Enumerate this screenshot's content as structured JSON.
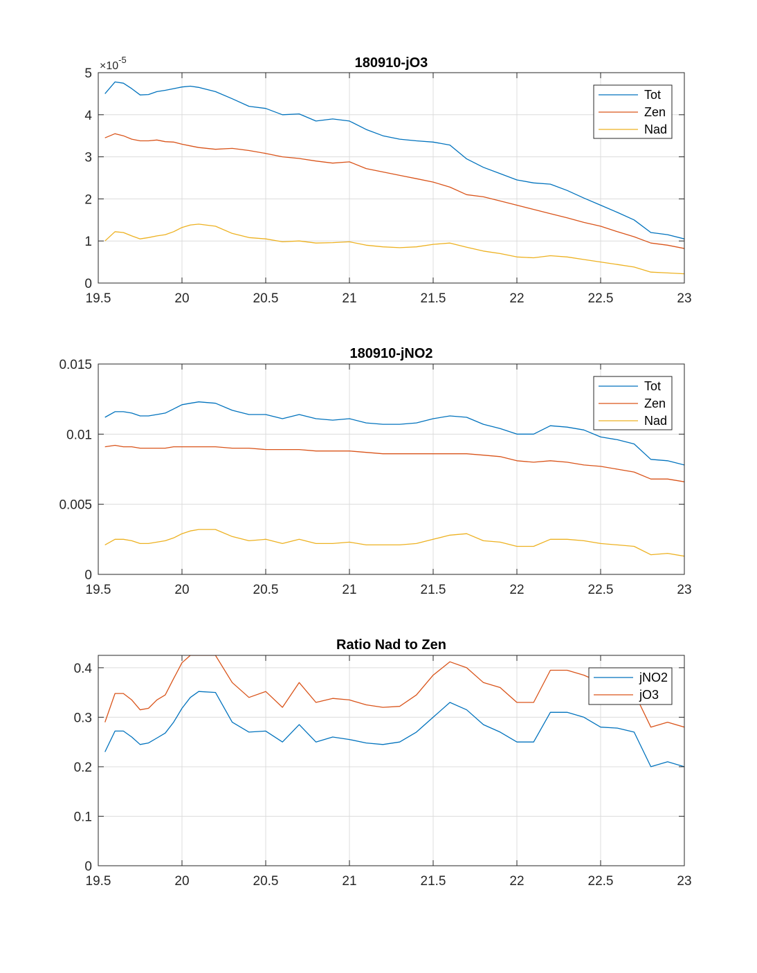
{
  "colors": {
    "blue": "#0072BD",
    "orange": "#D95319",
    "yellow": "#EDB120"
  },
  "chart_data": [
    {
      "type": "line",
      "title": "180910-jO3",
      "xlabel": "",
      "ylabel": "",
      "xlim": [
        19.5,
        23
      ],
      "ylim": [
        0,
        5
      ],
      "xticks": [
        19.5,
        20,
        20.5,
        21,
        21.5,
        22,
        22.5,
        23
      ],
      "xtick_labels": [
        "19.5",
        "20",
        "20.5",
        "21",
        "21.5",
        "22",
        "22.5",
        "23"
      ],
      "yticks": [
        0,
        1,
        2,
        3,
        4,
        5
      ],
      "ytick_labels": [
        "0",
        "1",
        "2",
        "3",
        "4",
        "5"
      ],
      "y_exponent_base": "×10",
      "y_exponent_power": "-5",
      "legend_position": "top-right",
      "grid": true,
      "x": [
        19.54,
        19.6,
        19.65,
        19.7,
        19.75,
        19.8,
        19.85,
        19.9,
        19.95,
        20.0,
        20.05,
        20.1,
        20.2,
        20.3,
        20.4,
        20.5,
        20.6,
        20.7,
        20.8,
        20.9,
        21.0,
        21.1,
        21.2,
        21.3,
        21.4,
        21.5,
        21.6,
        21.7,
        21.8,
        21.9,
        22.0,
        22.1,
        22.2,
        22.3,
        22.4,
        22.5,
        22.6,
        22.7,
        22.8,
        22.9,
        23.0
      ],
      "series": [
        {
          "name": "Tot",
          "color": "#0072BD",
          "values": [
            4.5,
            4.78,
            4.75,
            4.62,
            4.47,
            4.48,
            4.55,
            4.58,
            4.62,
            4.66,
            4.68,
            4.65,
            4.55,
            4.38,
            4.2,
            4.15,
            4.0,
            4.02,
            3.85,
            3.9,
            3.85,
            3.65,
            3.5,
            3.42,
            3.38,
            3.35,
            3.28,
            2.95,
            2.75,
            2.6,
            2.45,
            2.38,
            2.35,
            2.2,
            2.02,
            1.85,
            1.68,
            1.5,
            1.2,
            1.15,
            1.05
          ]
        },
        {
          "name": "Zen",
          "color": "#D95319",
          "values": [
            3.45,
            3.55,
            3.5,
            3.42,
            3.38,
            3.38,
            3.4,
            3.36,
            3.35,
            3.3,
            3.26,
            3.22,
            3.18,
            3.2,
            3.15,
            3.08,
            3.0,
            2.96,
            2.9,
            2.85,
            2.88,
            2.72,
            2.64,
            2.56,
            2.48,
            2.4,
            2.28,
            2.1,
            2.05,
            1.95,
            1.85,
            1.75,
            1.65,
            1.55,
            1.44,
            1.35,
            1.22,
            1.1,
            0.95,
            0.9,
            0.82
          ]
        },
        {
          "name": "Nad",
          "color": "#EDB120",
          "values": [
            1.0,
            1.22,
            1.2,
            1.12,
            1.05,
            1.08,
            1.12,
            1.15,
            1.22,
            1.32,
            1.38,
            1.4,
            1.35,
            1.18,
            1.08,
            1.05,
            0.98,
            1.0,
            0.95,
            0.96,
            0.98,
            0.9,
            0.86,
            0.84,
            0.86,
            0.92,
            0.95,
            0.85,
            0.76,
            0.7,
            0.62,
            0.6,
            0.65,
            0.62,
            0.56,
            0.5,
            0.44,
            0.38,
            0.26,
            0.24,
            0.22
          ]
        }
      ]
    },
    {
      "type": "line",
      "title": "180910-jNO2",
      "xlabel": "",
      "ylabel": "",
      "xlim": [
        19.5,
        23
      ],
      "ylim": [
        0,
        0.015
      ],
      "xticks": [
        19.5,
        20,
        20.5,
        21,
        21.5,
        22,
        22.5,
        23
      ],
      "xtick_labels": [
        "19.5",
        "20",
        "20.5",
        "21",
        "21.5",
        "22",
        "22.5",
        "23"
      ],
      "yticks": [
        0,
        0.005,
        0.01,
        0.015
      ],
      "ytick_labels": [
        "0",
        "0.005",
        "0.01",
        "0.015"
      ],
      "legend_position": "top-right",
      "grid": true,
      "x": [
        19.54,
        19.6,
        19.65,
        19.7,
        19.75,
        19.8,
        19.85,
        19.9,
        19.95,
        20.0,
        20.05,
        20.1,
        20.2,
        20.3,
        20.4,
        20.5,
        20.6,
        20.7,
        20.8,
        20.9,
        21.0,
        21.1,
        21.2,
        21.3,
        21.4,
        21.5,
        21.6,
        21.7,
        21.8,
        21.9,
        22.0,
        22.1,
        22.2,
        22.3,
        22.4,
        22.5,
        22.6,
        22.7,
        22.8,
        22.9,
        23.0
      ],
      "series": [
        {
          "name": "Tot",
          "color": "#0072BD",
          "values": [
            0.0112,
            0.0116,
            0.0116,
            0.0115,
            0.0113,
            0.0113,
            0.0114,
            0.0115,
            0.0118,
            0.0121,
            0.0122,
            0.0123,
            0.0122,
            0.0117,
            0.0114,
            0.0114,
            0.0111,
            0.0114,
            0.0111,
            0.011,
            0.0111,
            0.0108,
            0.0107,
            0.0107,
            0.0108,
            0.0111,
            0.0113,
            0.0112,
            0.0107,
            0.0104,
            0.01,
            0.01,
            0.0106,
            0.0105,
            0.0103,
            0.0098,
            0.0096,
            0.0093,
            0.0082,
            0.0081,
            0.0078
          ]
        },
        {
          "name": "Zen",
          "color": "#D95319",
          "values": [
            0.0091,
            0.0092,
            0.0091,
            0.0091,
            0.009,
            0.009,
            0.009,
            0.009,
            0.0091,
            0.0091,
            0.0091,
            0.0091,
            0.0091,
            0.009,
            0.009,
            0.0089,
            0.0089,
            0.0089,
            0.0088,
            0.0088,
            0.0088,
            0.0087,
            0.0086,
            0.0086,
            0.0086,
            0.0086,
            0.0086,
            0.0086,
            0.0085,
            0.0084,
            0.0081,
            0.008,
            0.0081,
            0.008,
            0.0078,
            0.0077,
            0.0075,
            0.0073,
            0.0068,
            0.0068,
            0.0066
          ]
        },
        {
          "name": "Nad",
          "color": "#EDB120",
          "values": [
            0.0021,
            0.0025,
            0.0025,
            0.0024,
            0.0022,
            0.0022,
            0.0023,
            0.0024,
            0.0026,
            0.0029,
            0.0031,
            0.0032,
            0.0032,
            0.0027,
            0.0024,
            0.0025,
            0.0022,
            0.0025,
            0.0022,
            0.0022,
            0.0023,
            0.0021,
            0.0021,
            0.0021,
            0.0022,
            0.0025,
            0.0028,
            0.0029,
            0.0024,
            0.0023,
            0.002,
            0.002,
            0.0025,
            0.0025,
            0.0024,
            0.0022,
            0.0021,
            0.002,
            0.0014,
            0.0015,
            0.0013
          ]
        }
      ]
    },
    {
      "type": "line",
      "title": "Ratio Nad to Zen",
      "xlabel": "",
      "ylabel": "",
      "xlim": [
        19.5,
        23
      ],
      "ylim": [
        0,
        0.425
      ],
      "xticks": [
        19.5,
        20,
        20.5,
        21,
        21.5,
        22,
        22.5,
        23
      ],
      "xtick_labels": [
        "19.5",
        "20",
        "20.5",
        "21",
        "21.5",
        "22",
        "22.5",
        "23"
      ],
      "yticks": [
        0,
        0.1,
        0.2,
        0.3,
        0.4
      ],
      "ytick_labels": [
        "0",
        "0.1",
        "0.2",
        "0.3",
        "0.4"
      ],
      "legend_position": "top-right",
      "grid": true,
      "x": [
        19.54,
        19.6,
        19.65,
        19.7,
        19.75,
        19.8,
        19.85,
        19.9,
        19.95,
        20.0,
        20.05,
        20.1,
        20.2,
        20.3,
        20.4,
        20.5,
        20.6,
        20.7,
        20.8,
        20.9,
        21.0,
        21.1,
        21.2,
        21.3,
        21.4,
        21.5,
        21.6,
        21.7,
        21.8,
        21.9,
        22.0,
        22.1,
        22.2,
        22.3,
        22.4,
        22.5,
        22.6,
        22.7,
        22.8,
        22.9,
        23.0
      ],
      "series": [
        {
          "name": "jNO2",
          "color": "#0072BD",
          "values": [
            0.23,
            0.272,
            0.272,
            0.26,
            0.245,
            0.248,
            0.258,
            0.268,
            0.29,
            0.318,
            0.34,
            0.352,
            0.35,
            0.29,
            0.27,
            0.272,
            0.25,
            0.285,
            0.25,
            0.26,
            0.255,
            0.248,
            0.245,
            0.25,
            0.27,
            0.3,
            0.33,
            0.315,
            0.285,
            0.27,
            0.25,
            0.25,
            0.31,
            0.31,
            0.3,
            0.28,
            0.278,
            0.27,
            0.2,
            0.21,
            0.2
          ]
        },
        {
          "name": "jO3",
          "color": "#D95319",
          "values": [
            0.29,
            0.348,
            0.348,
            0.335,
            0.315,
            0.318,
            0.335,
            0.345,
            0.378,
            0.41,
            0.425,
            0.425,
            0.425,
            0.37,
            0.34,
            0.352,
            0.32,
            0.37,
            0.33,
            0.338,
            0.335,
            0.325,
            0.32,
            0.322,
            0.345,
            0.385,
            0.412,
            0.4,
            0.37,
            0.36,
            0.33,
            0.33,
            0.395,
            0.395,
            0.385,
            0.37,
            0.365,
            0.35,
            0.28,
            0.29,
            0.28
          ]
        }
      ]
    }
  ]
}
